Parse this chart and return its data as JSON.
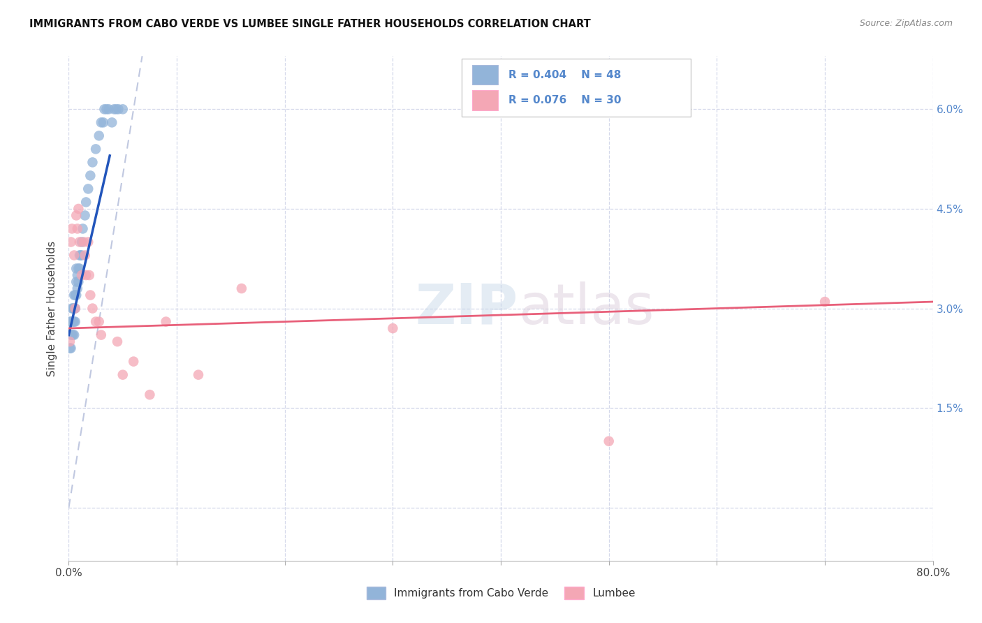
{
  "title": "IMMIGRANTS FROM CABO VERDE VS LUMBEE SINGLE FATHER HOUSEHOLDS CORRELATION CHART",
  "source": "Source: ZipAtlas.com",
  "ylabel": "Single Father Households",
  "xlim": [
    0.0,
    0.8
  ],
  "ylim": [
    -0.008,
    0.068
  ],
  "x_tick_positions": [
    0.0,
    0.1,
    0.2,
    0.3,
    0.4,
    0.5,
    0.6,
    0.7,
    0.8
  ],
  "x_tick_labels": [
    "0.0%",
    "",
    "",
    "",
    "",
    "",
    "",
    "",
    "80.0%"
  ],
  "y_tick_positions": [
    0.0,
    0.015,
    0.03,
    0.045,
    0.06
  ],
  "y_tick_labels_right": [
    "",
    "1.5%",
    "3.0%",
    "4.5%",
    "6.0%"
  ],
  "legend_R1": "R = 0.404",
  "legend_N1": "N = 48",
  "legend_R2": "R = 0.076",
  "legend_N2": "N = 30",
  "legend_label1": "Immigrants from Cabo Verde",
  "legend_label2": "Lumbee",
  "watermark": "ZIPatlas",
  "blue_scatter_color": "#92B4D9",
  "pink_scatter_color": "#F4A7B5",
  "line_blue_color": "#2255BB",
  "line_pink_color": "#E8607A",
  "diag_color": "#C0C8E0",
  "grid_color": "#D0D4E8",
  "right_axis_color": "#5588CC",
  "cabo_x": [
    0.001,
    0.001,
    0.002,
    0.002,
    0.003,
    0.003,
    0.003,
    0.004,
    0.004,
    0.004,
    0.005,
    0.005,
    0.005,
    0.005,
    0.006,
    0.006,
    0.006,
    0.006,
    0.007,
    0.007,
    0.007,
    0.008,
    0.008,
    0.008,
    0.009,
    0.009,
    0.01,
    0.01,
    0.01,
    0.011,
    0.012,
    0.012,
    0.013,
    0.014,
    0.015,
    0.016,
    0.017,
    0.018,
    0.019,
    0.02,
    0.022,
    0.024,
    0.026,
    0.028,
    0.03,
    0.034,
    0.038,
    0.045
  ],
  "cabo_y": [
    0.024,
    0.021,
    0.028,
    0.025,
    0.03,
    0.028,
    0.025,
    0.027,
    0.025,
    0.024,
    0.027,
    0.025,
    0.023,
    0.022,
    0.028,
    0.026,
    0.024,
    0.022,
    0.032,
    0.03,
    0.028,
    0.034,
    0.032,
    0.03,
    0.031,
    0.029,
    0.032,
    0.03,
    0.028,
    0.033,
    0.036,
    0.034,
    0.038,
    0.035,
    0.04,
    0.042,
    0.044,
    0.043,
    0.046,
    0.05,
    0.055,
    0.058,
    0.062,
    0.06,
    0.06,
    0.06,
    0.06,
    0.06
  ],
  "lumbee_x": [
    0.001,
    0.002,
    0.003,
    0.004,
    0.005,
    0.006,
    0.007,
    0.008,
    0.009,
    0.01,
    0.012,
    0.014,
    0.016,
    0.018,
    0.02,
    0.022,
    0.025,
    0.028,
    0.032,
    0.038,
    0.045,
    0.055,
    0.065,
    0.08,
    0.1,
    0.13,
    0.16,
    0.3,
    0.5,
    0.7
  ],
  "lumbee_y": [
    0.025,
    0.022,
    0.045,
    0.028,
    0.025,
    0.042,
    0.038,
    0.044,
    0.032,
    0.038,
    0.025,
    0.038,
    0.035,
    0.042,
    0.04,
    0.03,
    0.028,
    0.028,
    0.022,
    0.027,
    0.03,
    0.02,
    0.022,
    0.017,
    0.03,
    0.018,
    0.033,
    0.028,
    0.01,
    0.032
  ]
}
